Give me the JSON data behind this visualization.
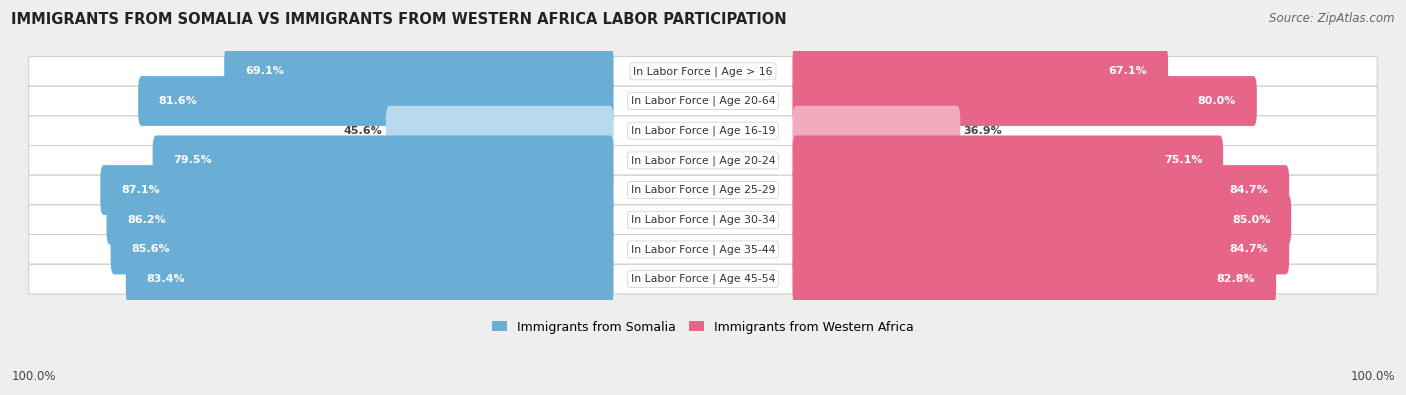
{
  "title": "IMMIGRANTS FROM SOMALIA VS IMMIGRANTS FROM WESTERN AFRICA LABOR PARTICIPATION",
  "source": "Source: ZipAtlas.com",
  "categories": [
    "In Labor Force | Age > 16",
    "In Labor Force | Age 20-64",
    "In Labor Force | Age 16-19",
    "In Labor Force | Age 20-24",
    "In Labor Force | Age 25-29",
    "In Labor Force | Age 30-34",
    "In Labor Force | Age 35-44",
    "In Labor Force | Age 45-54"
  ],
  "somalia_values": [
    69.1,
    81.6,
    45.6,
    79.5,
    87.1,
    86.2,
    85.6,
    83.4
  ],
  "western_africa_values": [
    67.1,
    80.0,
    36.9,
    75.1,
    84.7,
    85.0,
    84.7,
    82.8
  ],
  "somalia_color": "#6aaed6",
  "somalia_color_light": "#b8d9ee",
  "western_africa_color": "#e8658a",
  "western_africa_color_light": "#f2abbe",
  "bg_color": "#eeeeee",
  "legend_somalia": "Immigrants from Somalia",
  "legend_western_africa": "Immigrants from Western Africa",
  "max_value": 100.0,
  "bottom_label": "100.0%"
}
